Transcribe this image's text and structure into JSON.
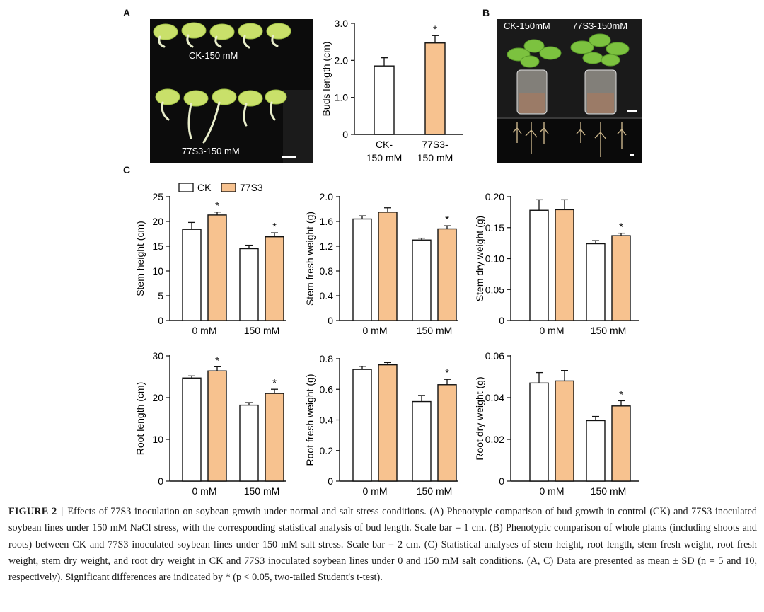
{
  "panels": {
    "a": "A",
    "b": "B",
    "c": "C"
  },
  "photo_a": {
    "top_label": "CK-150 mM",
    "bottom_label": "77S3-150 mM"
  },
  "photo_b": {
    "left_label": "CK-150mM",
    "right_label": "77S3-150mM"
  },
  "legend": {
    "ck": "CK",
    "s3": "77S3"
  },
  "colors": {
    "ck": "#ffffff",
    "s3": "#f7c28f",
    "edge": "#111111",
    "photo_bg": "#0c0c0c"
  },
  "chart_data": [
    {
      "id": "buds",
      "type": "bar",
      "ylabel": "Buds length (cm)",
      "ylim": [
        0,
        3.0
      ],
      "yticks": [
        "0",
        "1.0",
        "2.0",
        "3.0"
      ],
      "ytick_values": [
        0,
        1,
        2,
        3
      ],
      "categories": [
        "CK-\n150 mM",
        "77S3-\n150 mM"
      ],
      "bars": [
        {
          "series": "CK",
          "value": 1.85,
          "err": 0.22,
          "star": false
        },
        {
          "series": "77S3",
          "value": 2.47,
          "err": 0.2,
          "star": true
        }
      ]
    },
    {
      "id": "stem-height",
      "type": "bar",
      "ylabel": "Stem height (cm)",
      "ylim": [
        0,
        25
      ],
      "yticks": [
        "0",
        "5",
        "10",
        "15",
        "20",
        "25"
      ],
      "ytick_values": [
        0,
        5,
        10,
        15,
        20,
        25
      ],
      "categories": [
        "0 mM",
        "150 mM"
      ],
      "series": [
        {
          "name": "CK",
          "values": [
            18.4,
            14.5
          ],
          "err": [
            1.4,
            0.7
          ],
          "stars": [
            false,
            false
          ]
        },
        {
          "name": "77S3",
          "values": [
            21.3,
            16.9
          ],
          "err": [
            0.6,
            0.8
          ],
          "stars": [
            true,
            true
          ]
        }
      ]
    },
    {
      "id": "stem-fresh",
      "type": "bar",
      "ylabel": "Stem fresh weight (g)",
      "ylim": [
        0,
        2.0
      ],
      "yticks": [
        "0",
        "0.4",
        "0.8",
        "1.2",
        "1.6",
        "2.0"
      ],
      "ytick_values": [
        0,
        0.4,
        0.8,
        1.2,
        1.6,
        2.0
      ],
      "categories": [
        "0 mM",
        "150 mM"
      ],
      "series": [
        {
          "name": "CK",
          "values": [
            1.64,
            1.3
          ],
          "err": [
            0.05,
            0.03
          ],
          "stars": [
            false,
            false
          ]
        },
        {
          "name": "77S3",
          "values": [
            1.75,
            1.48
          ],
          "err": [
            0.07,
            0.05
          ],
          "stars": [
            false,
            true
          ]
        }
      ]
    },
    {
      "id": "stem-dry",
      "type": "bar",
      "ylabel": "Stem dry weight (g)",
      "ylim": [
        0,
        0.2
      ],
      "yticks": [
        "0",
        "0.05",
        "0.10",
        "0.15",
        "0.20"
      ],
      "ytick_values": [
        0,
        0.05,
        0.1,
        0.15,
        0.2
      ],
      "categories": [
        "0 mM",
        "150 mM"
      ],
      "series": [
        {
          "name": "CK",
          "values": [
            0.178,
            0.124
          ],
          "err": [
            0.017,
            0.005
          ],
          "stars": [
            false,
            false
          ]
        },
        {
          "name": "77S3",
          "values": [
            0.179,
            0.137
          ],
          "err": [
            0.016,
            0.004
          ],
          "stars": [
            false,
            true
          ]
        }
      ]
    },
    {
      "id": "root-length",
      "type": "bar",
      "ylabel": "Root length (cm)",
      "ylim": [
        0,
        30
      ],
      "yticks": [
        "0",
        "10",
        "20",
        "30"
      ],
      "ytick_values": [
        0,
        10,
        20,
        30
      ],
      "categories": [
        "0 mM",
        "150 mM"
      ],
      "series": [
        {
          "name": "CK",
          "values": [
            24.7,
            18.2
          ],
          "err": [
            0.5,
            0.6
          ],
          "stars": [
            false,
            false
          ]
        },
        {
          "name": "77S3",
          "values": [
            26.4,
            21.0
          ],
          "err": [
            1.0,
            1.0
          ],
          "stars": [
            true,
            true
          ]
        }
      ]
    },
    {
      "id": "root-fresh",
      "type": "bar",
      "ylabel": "Root fresh weight (g)",
      "ylim": [
        0,
        0.8
      ],
      "yticks": [
        "0",
        "0.2",
        "0.4",
        "0.6",
        "0.8"
      ],
      "ytick_values": [
        0,
        0.2,
        0.4,
        0.6,
        0.8
      ],
      "categories": [
        "0 mM",
        "150 mM"
      ],
      "series": [
        {
          "name": "CK",
          "values": [
            0.73,
            0.52
          ],
          "err": [
            0.02,
            0.04
          ],
          "stars": [
            false,
            false
          ]
        },
        {
          "name": "77S3",
          "values": [
            0.76,
            0.63
          ],
          "err": [
            0.015,
            0.035
          ],
          "stars": [
            false,
            true
          ]
        }
      ]
    },
    {
      "id": "root-dry",
      "type": "bar",
      "ylabel": "Root  dry weight (g)",
      "ylim": [
        0,
        0.06
      ],
      "yticks": [
        "0",
        "0.02",
        "0.04",
        "0.06"
      ],
      "ytick_values": [
        0,
        0.02,
        0.04,
        0.06
      ],
      "categories": [
        "0 mM",
        "150 mM"
      ],
      "series": [
        {
          "name": "CK",
          "values": [
            0.047,
            0.029
          ],
          "err": [
            0.005,
            0.002
          ],
          "stars": [
            false,
            false
          ]
        },
        {
          "name": "77S3",
          "values": [
            0.048,
            0.036
          ],
          "err": [
            0.005,
            0.0025
          ],
          "stars": [
            false,
            true
          ]
        }
      ]
    }
  ],
  "caption": {
    "figure_label": "FIGURE 2",
    "separator": "|",
    "text": "Effects of 77S3 inoculation on soybean growth under normal and salt stress conditions. (A) Phenotypic comparison of bud growth in control (CK) and 77S3 inoculated soybean lines under 150 mM NaCl stress, with the corresponding statistical analysis of bud length. Scale bar = 1 cm. (B) Phenotypic comparison of whole plants (including shoots and roots) between CK and 77S3 inoculated soybean lines under 150 mM salt stress. Scale bar = 2 cm. (C) Statistical analyses of stem height, root length, stem fresh weight, root fresh weight, stem dry weight, and root dry weight in CK and 77S3 inoculated soybean lines under 0 and 150 mM salt conditions. (A, C) Data are presented as mean ± SD (n = 5 and 10, respectively). Significant differences are indicated by * (p < 0.05, two-tailed Student's t-test)."
  }
}
